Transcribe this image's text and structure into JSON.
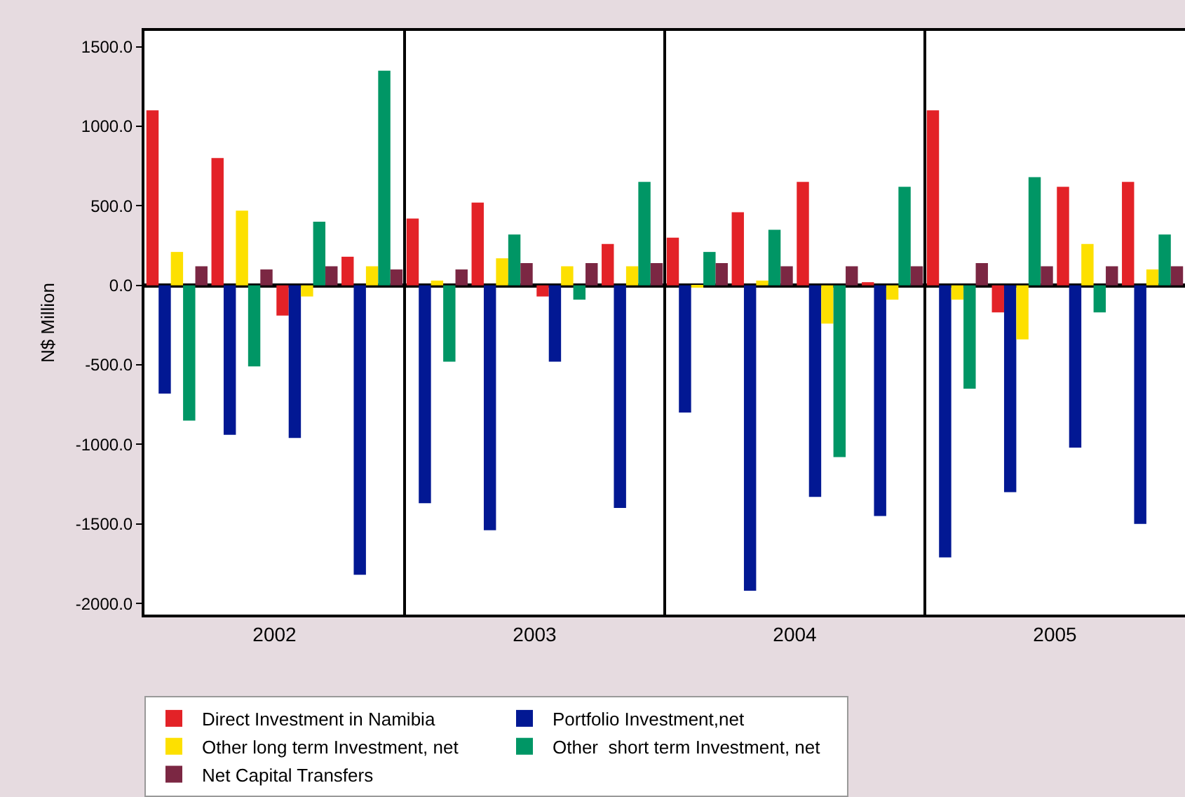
{
  "chart_data": {
    "type": "bar",
    "ylabel": "N$ Million",
    "x": [
      2002.0,
      2002.25,
      2002.5,
      2002.75,
      2003.0,
      2003.25,
      2003.5,
      2003.75,
      2004.0,
      2004.25,
      2004.5,
      2004.75,
      2005.0,
      2005.25,
      2005.5,
      2005.75
    ],
    "xlim": [
      2001.875,
      2005.875
    ],
    "xticks": [
      {
        "value": 2002.375,
        "label": "2002"
      },
      {
        "value": 2003.375,
        "label": "2003"
      },
      {
        "value": 2004.375,
        "label": "2004"
      },
      {
        "value": 2005.375,
        "label": "2005"
      }
    ],
    "ylim": [
      -2070,
      1600
    ],
    "yticks": [
      {
        "value": 1500,
        "label": "1500.0"
      },
      {
        "value": 1000,
        "label": "1000.0"
      },
      {
        "value": 500,
        "label": "500.0"
      },
      {
        "value": 0,
        "label": "0.0"
      },
      {
        "value": -500,
        "label": "-500.0"
      },
      {
        "value": -1000,
        "label": "-1000.0"
      },
      {
        "value": -1500,
        "label": "-1500.0"
      },
      {
        "value": -2000,
        "label": "-2000.0"
      }
    ],
    "legend": "bottom",
    "ref_lines": [
      {
        "axis": "x",
        "value": 2002.875,
        "color": "#000000"
      },
      {
        "axis": "x",
        "value": 2003.875,
        "color": "#000000"
      },
      {
        "axis": "x",
        "value": 2004.875,
        "color": "#000000"
      }
    ],
    "series": [
      {
        "name": "Direct Investment in Namibia",
        "color": "#e32227",
        "values": [
          1100,
          800,
          -190,
          180,
          420,
          520,
          -70,
          260,
          300,
          460,
          650,
          20,
          1100,
          -170,
          620,
          650
        ]
      },
      {
        "name": "Portfolio Investment,net",
        "color": "#021893",
        "values": [
          -680,
          -940,
          -960,
          -1820,
          -1370,
          -1540,
          -480,
          -1400,
          -800,
          -1920,
          -1330,
          -1450,
          -1710,
          -1300,
          -1020,
          -1500
        ]
      },
      {
        "name": "Other long term Investment, net",
        "color": "#fde000",
        "values": [
          210,
          470,
          -70,
          120,
          30,
          170,
          120,
          120,
          -10,
          30,
          -240,
          -90,
          -90,
          -340,
          260,
          100
        ]
      },
      {
        "name": "Other  short term Investment, net",
        "color": "#009665",
        "values": [
          -850,
          -510,
          400,
          1350,
          -480,
          320,
          -90,
          650,
          210,
          350,
          -1080,
          620,
          -650,
          680,
          -170,
          320
        ]
      },
      {
        "name": "Net Capital Transfers",
        "color": "#7b2743",
        "values": [
          120,
          100,
          120,
          100,
          100,
          140,
          140,
          140,
          140,
          120,
          120,
          120,
          140,
          120,
          120,
          120
        ]
      }
    ]
  }
}
